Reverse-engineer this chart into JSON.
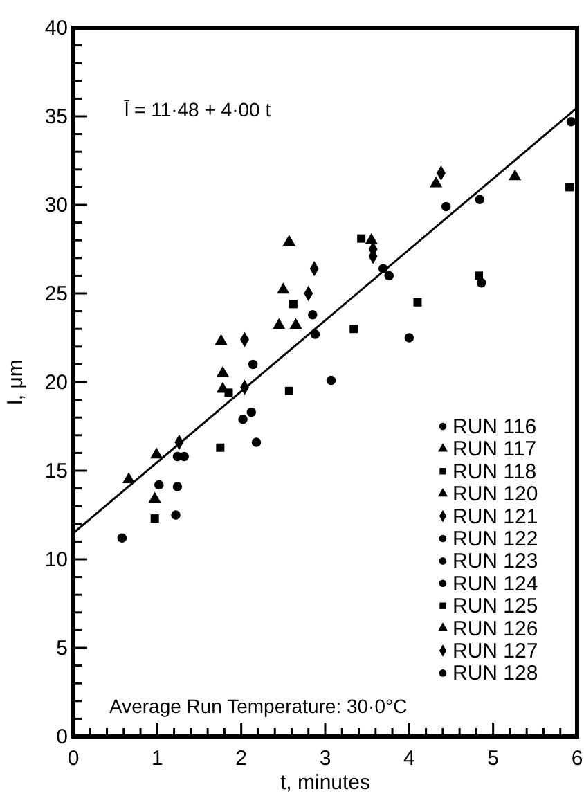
{
  "chart_data": {
    "type": "scatter",
    "xlabel": "t, minutes",
    "ylabel": "l, μm",
    "annotations": [
      "l̄ = 11·48 + 4·00 t",
      "Average Run Temperature: 30·0°C"
    ],
    "xlim": [
      0,
      6
    ],
    "ylim": [
      0,
      40
    ],
    "xticks": [
      0,
      {
        "value": 0.2,
        "label": null
      },
      {
        "value": 0.4,
        "label": null
      },
      {
        "value": 0.6,
        "label": null
      },
      {
        "value": 0.8,
        "label": null
      },
      1,
      {
        "value": 1.2,
        "label": null
      },
      {
        "value": 1.4,
        "label": null
      },
      {
        "value": 1.6,
        "label": null
      },
      {
        "value": 1.8,
        "label": null
      },
      2,
      {
        "value": 2.2,
        "label": null
      },
      {
        "value": 2.4,
        "label": null
      },
      {
        "value": 2.6,
        "label": null
      },
      {
        "value": 2.8,
        "label": null
      },
      3,
      {
        "value": 3.2,
        "label": null
      },
      {
        "value": 3.4,
        "label": null
      },
      {
        "value": 3.6,
        "label": null
      },
      {
        "value": 3.8,
        "label": null
      },
      4,
      {
        "value": 4.2,
        "label": null
      },
      {
        "value": 4.4,
        "label": null
      },
      {
        "value": 4.6,
        "label": null
      },
      {
        "value": 4.8,
        "label": null
      },
      5,
      {
        "value": 5.2,
        "label": null
      },
      {
        "value": 5.4,
        "label": null
      },
      {
        "value": 5.6,
        "label": null
      },
      {
        "value": 5.8,
        "label": null
      },
      6
    ],
    "yticks": [
      0,
      {
        "value": 1,
        "label": null
      },
      {
        "value": 2,
        "label": null
      },
      {
        "value": 3,
        "label": null
      },
      {
        "value": 4,
        "label": null
      },
      5,
      {
        "value": 6,
        "label": null
      },
      {
        "value": 7,
        "label": null
      },
      {
        "value": 8,
        "label": null
      },
      {
        "value": 9,
        "label": null
      },
      10,
      {
        "value": 11,
        "label": null
      },
      {
        "value": 12,
        "label": null
      },
      {
        "value": 13,
        "label": null
      },
      {
        "value": 14,
        "label": null
      },
      15,
      {
        "value": 16,
        "label": null
      },
      {
        "value": 17,
        "label": null
      },
      {
        "value": 18,
        "label": null
      },
      {
        "value": 19,
        "label": null
      },
      20,
      {
        "value": 21,
        "label": null
      },
      {
        "value": 22,
        "label": null
      },
      {
        "value": 23,
        "label": null
      },
      {
        "value": 24,
        "label": null
      },
      25,
      {
        "value": 26,
        "label": null
      },
      {
        "value": 27,
        "label": null
      },
      {
        "value": 28,
        "label": null
      },
      {
        "value": 29,
        "label": null
      },
      30,
      {
        "value": 31,
        "label": null
      },
      {
        "value": 32,
        "label": null
      },
      {
        "value": 33,
        "label": null
      },
      {
        "value": 34,
        "label": null
      },
      35,
      {
        "value": 36,
        "label": null
      },
      {
        "value": 37,
        "label": null
      },
      {
        "value": 38,
        "label": null
      },
      {
        "value": 39,
        "label": null
      },
      40
    ],
    "legend": "bottom right",
    "grid": false,
    "series": [
      {
        "name": "RUN 116",
        "color": "#000000",
        "marker": "circle",
        "x": [
          5.93,
          4.44,
          3.69,
          1.32
        ],
        "values": [
          34.7,
          29.9,
          26.4,
          15.8
        ]
      },
      {
        "name": "RUN 117",
        "color": "#000000",
        "marker": "triangle",
        "x": [
          0.97,
          0.99,
          1.78,
          2.5,
          2.65,
          4.32,
          5.26,
          3.55
        ],
        "values": [
          13.4,
          15.9,
          20.5,
          25.2,
          23.2,
          31.2,
          31.6,
          28.0
        ]
      },
      {
        "name": "RUN 118",
        "color": "#000000",
        "marker": "square",
        "x": [
          0.97,
          1.75,
          2.57,
          3.34,
          4.1,
          4.83,
          5.91
        ],
        "values": [
          12.3,
          16.3,
          19.5,
          23.0,
          24.5,
          26.0,
          31.0
        ]
      },
      {
        "name": "RUN 120",
        "color": "#000000",
        "marker": "triangle",
        "x": [
          0.66,
          1.76,
          1.78,
          2.45
        ],
        "values": [
          14.5,
          22.3,
          19.6,
          23.2
        ]
      },
      {
        "name": "RUN 121",
        "color": "#000000",
        "marker": "diamond",
        "x": [
          1.26,
          2.04,
          3.57,
          4.38
        ],
        "values": [
          16.6,
          19.7,
          27.5,
          31.8
        ]
      },
      {
        "name": "RUN 122",
        "color": "#000000",
        "marker": "circle",
        "x": [
          1.22,
          2.02,
          2.12,
          2.18,
          3.07,
          4.0,
          4.86
        ],
        "values": [
          12.5,
          17.9,
          18.3,
          16.6,
          20.1,
          22.5,
          25.6
        ]
      },
      {
        "name": "RUN 123",
        "color": "#000000",
        "marker": "circle",
        "x": [
          1.24,
          2.14
        ],
        "values": [
          14.1,
          21.0
        ]
      },
      {
        "name": "RUN 124",
        "color": "#000000",
        "marker": "circle",
        "x": [
          1.02,
          1.24,
          2.85
        ],
        "values": [
          14.2,
          15.8,
          23.8
        ]
      },
      {
        "name": "RUN 125",
        "color": "#000000",
        "marker": "square",
        "x": [
          1.85,
          2.62,
          3.43
        ],
        "values": [
          19.4,
          24.4,
          28.1
        ]
      },
      {
        "name": "RUN 126",
        "color": "#000000",
        "marker": "triangle",
        "x": [
          2.57
        ],
        "values": [
          27.9
        ]
      },
      {
        "name": "RUN 127",
        "color": "#000000",
        "marker": "diamond",
        "x": [
          2.04,
          2.87,
          2.8,
          3.57
        ],
        "values": [
          22.4,
          26.4,
          25.0,
          27.1
        ]
      },
      {
        "name": "RUN 128",
        "color": "#000000",
        "marker": "circle",
        "x": [
          0.58,
          2.88,
          3.76,
          4.84
        ],
        "values": [
          11.2,
          22.7,
          26.0,
          30.3
        ]
      },
      {
        "type": "line",
        "color": "#000000",
        "line_style": "solid",
        "x": [
          0,
          6
        ],
        "values": [
          11.48,
          35.48
        ]
      }
    ]
  }
}
